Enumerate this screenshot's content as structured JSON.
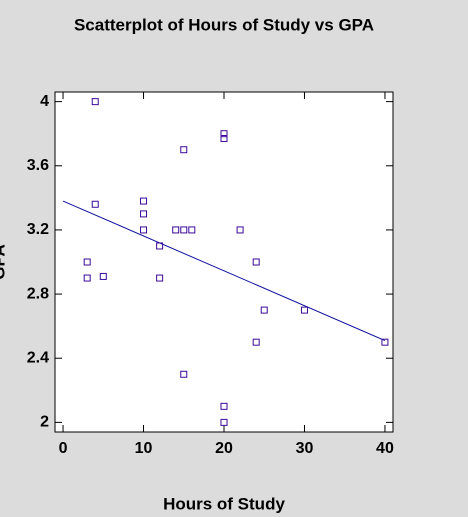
{
  "chart_data": {
    "type": "scatter",
    "title": "Scatterplot of Hours of Study vs GPA",
    "x_label": "Hours of Study",
    "y_label": "GPA",
    "x": [
      4,
      20,
      20,
      15,
      4,
      10,
      10,
      10,
      14,
      15,
      16,
      22,
      12,
      3,
      24,
      3,
      5,
      12,
      25,
      30,
      24,
      40,
      15,
      20,
      20
    ],
    "y": [
      4.0,
      3.8,
      3.77,
      3.7,
      3.36,
      3.38,
      3.3,
      3.2,
      3.2,
      3.2,
      3.2,
      3.2,
      3.1,
      3.0,
      3.0,
      2.9,
      2.91,
      2.9,
      2.7,
      2.7,
      2.5,
      2.5,
      2.3,
      2.1,
      2.0
    ],
    "color": "#3a0a9a",
    "fit": {
      "x": [
        0,
        40
      ],
      "y": [
        3.38,
        2.51
      ],
      "color": "#1010a0"
    },
    "xlim": [
      -1,
      41
    ],
    "ylim": [
      1.94,
      4.06
    ],
    "xticks": [
      0,
      10,
      20,
      30,
      40
    ],
    "yticks": [
      2,
      2.4,
      2.8,
      3.2,
      3.6,
      4
    ],
    "grid": false
  }
}
